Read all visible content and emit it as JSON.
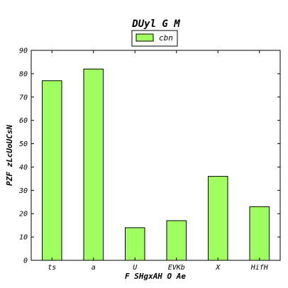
{
  "chart_data": {
    "type": "bar",
    "title": "DUyl G M",
    "xlabel": "F SHgxAH O Ae",
    "ylabel": "PZF zLcUoUCsN",
    "categories": [
      "ts",
      "a",
      "U",
      "EVKb",
      "X",
      "HifH"
    ],
    "series": [
      {
        "name": "cbn",
        "values": [
          77,
          82,
          14,
          17,
          36,
          23
        ],
        "color": "#a0ff60"
      }
    ],
    "ylim": [
      0,
      90
    ],
    "yticks": [
      0,
      10,
      20,
      30,
      40,
      50,
      60,
      70,
      80,
      90
    ],
    "grid": false,
    "legend_position": "top-center"
  }
}
